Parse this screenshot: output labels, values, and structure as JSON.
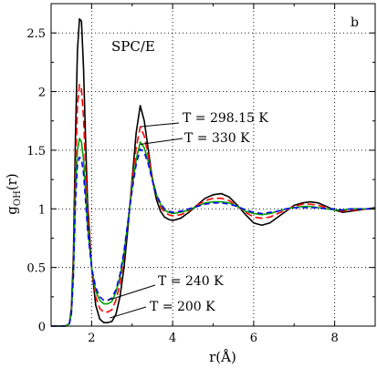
{
  "chart_data": {
    "type": "line",
    "panel_label": "b",
    "model_label": "SPC/E",
    "xlabel": "r(Å)",
    "ylabel_main": "g",
    "ylabel_sub": "OH",
    "ylabel_tail": "(r)",
    "xlim": [
      1.0,
      9.0
    ],
    "ylim": [
      0.0,
      2.75
    ],
    "x_ticks": [
      2,
      4,
      6,
      8
    ],
    "x_tick_labels": [
      "2",
      "4",
      "6",
      "8"
    ],
    "y_ticks": [
      0,
      0.5,
      1,
      1.5,
      2,
      2.5
    ],
    "y_tick_labels": [
      "0",
      "0.5",
      "1",
      "1.5",
      "2",
      "2.5"
    ],
    "grid": true,
    "legend": "none",
    "annotations": [
      {
        "text": "T = 298.15 K",
        "target_x": 3.2,
        "target_y": 1.7
      },
      {
        "text": "T = 330 K",
        "target_x": 3.2,
        "target_y": 1.55
      },
      {
        "text": "T = 240 K",
        "target_x": 2.4,
        "target_y": 0.22
      },
      {
        "text": "T = 200 K",
        "target_x": 2.45,
        "target_y": 0.07
      }
    ],
    "series": [
      {
        "color": "#000000",
        "dash": "solid",
        "x": [
          1.0,
          1.35,
          1.45,
          1.5,
          1.55,
          1.6,
          1.65,
          1.7,
          1.75,
          1.8,
          1.85,
          1.9,
          2.0,
          2.1,
          2.2,
          2.3,
          2.4,
          2.5,
          2.6,
          2.7,
          2.8,
          2.9,
          3.0,
          3.1,
          3.2,
          3.3,
          3.4,
          3.5,
          3.6,
          3.7,
          3.8,
          3.9,
          4.0,
          4.2,
          4.4,
          4.6,
          4.8,
          5.0,
          5.2,
          5.4,
          5.6,
          5.8,
          6.0,
          6.2,
          6.4,
          6.6,
          6.8,
          7.0,
          7.2,
          7.4,
          7.6,
          7.8,
          8.0,
          8.2,
          8.4,
          8.6,
          8.8,
          9.0
        ],
        "y": [
          0.0,
          0.0,
          0.02,
          0.15,
          0.6,
          1.6,
          2.35,
          2.62,
          2.6,
          2.2,
          1.6,
          1.05,
          0.5,
          0.18,
          0.06,
          0.03,
          0.03,
          0.04,
          0.1,
          0.25,
          0.5,
          0.85,
          1.25,
          1.65,
          1.88,
          1.75,
          1.5,
          1.25,
          1.08,
          0.98,
          0.93,
          0.91,
          0.9,
          0.92,
          0.97,
          1.03,
          1.09,
          1.12,
          1.13,
          1.1,
          1.03,
          0.95,
          0.88,
          0.86,
          0.88,
          0.93,
          0.98,
          1.03,
          1.05,
          1.06,
          1.05,
          1.02,
          0.99,
          0.97,
          0.98,
          0.99,
          1.0,
          1.01
        ]
      },
      {
        "color": "#ff0000",
        "dash": "8,4",
        "x": [
          1.0,
          1.35,
          1.45,
          1.5,
          1.55,
          1.6,
          1.65,
          1.7,
          1.75,
          1.8,
          1.85,
          1.9,
          2.0,
          2.1,
          2.2,
          2.3,
          2.4,
          2.5,
          2.6,
          2.7,
          2.8,
          2.9,
          3.0,
          3.1,
          3.2,
          3.3,
          3.4,
          3.5,
          3.6,
          3.7,
          3.8,
          3.9,
          4.0,
          4.2,
          4.4,
          4.6,
          4.8,
          5.0,
          5.2,
          5.4,
          5.6,
          5.8,
          6.0,
          6.2,
          6.4,
          6.6,
          6.8,
          7.0,
          7.2,
          7.4,
          7.6,
          7.8,
          8.0,
          8.2,
          8.4,
          8.6,
          8.8,
          9.0
        ],
        "y": [
          0.0,
          0.0,
          0.02,
          0.12,
          0.5,
          1.3,
          1.88,
          2.06,
          2.02,
          1.78,
          1.35,
          0.95,
          0.5,
          0.25,
          0.15,
          0.12,
          0.12,
          0.14,
          0.22,
          0.36,
          0.6,
          0.9,
          1.22,
          1.52,
          1.7,
          1.62,
          1.45,
          1.27,
          1.12,
          1.02,
          0.97,
          0.95,
          0.94,
          0.95,
          0.98,
          1.03,
          1.07,
          1.09,
          1.09,
          1.07,
          1.02,
          0.97,
          0.93,
          0.92,
          0.93,
          0.96,
          0.99,
          1.02,
          1.04,
          1.04,
          1.03,
          1.01,
          0.99,
          0.98,
          0.99,
          0.99,
          1.0,
          1.0
        ]
      },
      {
        "color": "#00a000",
        "dash": "solid",
        "x": [
          1.0,
          1.35,
          1.45,
          1.5,
          1.55,
          1.6,
          1.65,
          1.7,
          1.75,
          1.8,
          1.85,
          1.9,
          2.0,
          2.1,
          2.2,
          2.3,
          2.4,
          2.5,
          2.6,
          2.7,
          2.8,
          2.9,
          3.0,
          3.1,
          3.2,
          3.3,
          3.4,
          3.5,
          3.6,
          3.7,
          3.8,
          3.9,
          4.0,
          4.2,
          4.4,
          4.6,
          4.8,
          5.0,
          5.2,
          5.4,
          5.6,
          5.8,
          6.0,
          6.2,
          6.4,
          6.6,
          6.8,
          7.0,
          7.2,
          7.4,
          7.6,
          7.8,
          8.0,
          8.2,
          8.4,
          8.6,
          8.8,
          9.0
        ],
        "y": [
          0.0,
          0.0,
          0.02,
          0.11,
          0.45,
          1.15,
          1.5,
          1.6,
          1.57,
          1.42,
          1.15,
          0.85,
          0.5,
          0.3,
          0.22,
          0.19,
          0.19,
          0.21,
          0.29,
          0.42,
          0.62,
          0.9,
          1.18,
          1.42,
          1.57,
          1.52,
          1.4,
          1.25,
          1.12,
          1.04,
          0.99,
          0.97,
          0.96,
          0.97,
          0.99,
          1.02,
          1.05,
          1.06,
          1.06,
          1.05,
          1.02,
          0.98,
          0.96,
          0.95,
          0.96,
          0.98,
          1.0,
          1.01,
          1.02,
          1.02,
          1.01,
          1.0,
          0.99,
          0.99,
          1.0,
          1.0,
          1.0,
          1.0
        ]
      },
      {
        "color": "#0000ff",
        "dash": "6,4",
        "x": [
          1.0,
          1.35,
          1.45,
          1.5,
          1.55,
          1.6,
          1.65,
          1.7,
          1.75,
          1.8,
          1.85,
          1.9,
          2.0,
          2.1,
          2.2,
          2.3,
          2.4,
          2.5,
          2.6,
          2.7,
          2.8,
          2.9,
          3.0,
          3.1,
          3.2,
          3.3,
          3.4,
          3.5,
          3.6,
          3.7,
          3.8,
          3.9,
          4.0,
          4.2,
          4.4,
          4.6,
          4.8,
          5.0,
          5.2,
          5.4,
          5.6,
          5.8,
          6.0,
          6.2,
          6.4,
          6.6,
          6.8,
          7.0,
          7.2,
          7.4,
          7.6,
          7.8,
          8.0,
          8.2,
          8.4,
          8.6,
          8.8,
          9.0
        ],
        "y": [
          0.0,
          0.0,
          0.02,
          0.1,
          0.42,
          1.05,
          1.38,
          1.44,
          1.42,
          1.3,
          1.07,
          0.82,
          0.5,
          0.33,
          0.25,
          0.22,
          0.22,
          0.24,
          0.31,
          0.44,
          0.64,
          0.9,
          1.16,
          1.38,
          1.51,
          1.48,
          1.38,
          1.24,
          1.12,
          1.05,
          1.0,
          0.98,
          0.97,
          0.98,
          1.0,
          1.02,
          1.04,
          1.05,
          1.05,
          1.04,
          1.02,
          0.99,
          0.97,
          0.96,
          0.97,
          0.98,
          1.0,
          1.01,
          1.01,
          1.01,
          1.01,
          1.0,
          1.0,
          0.99,
          1.0,
          1.0,
          1.0,
          1.0
        ]
      }
    ]
  }
}
